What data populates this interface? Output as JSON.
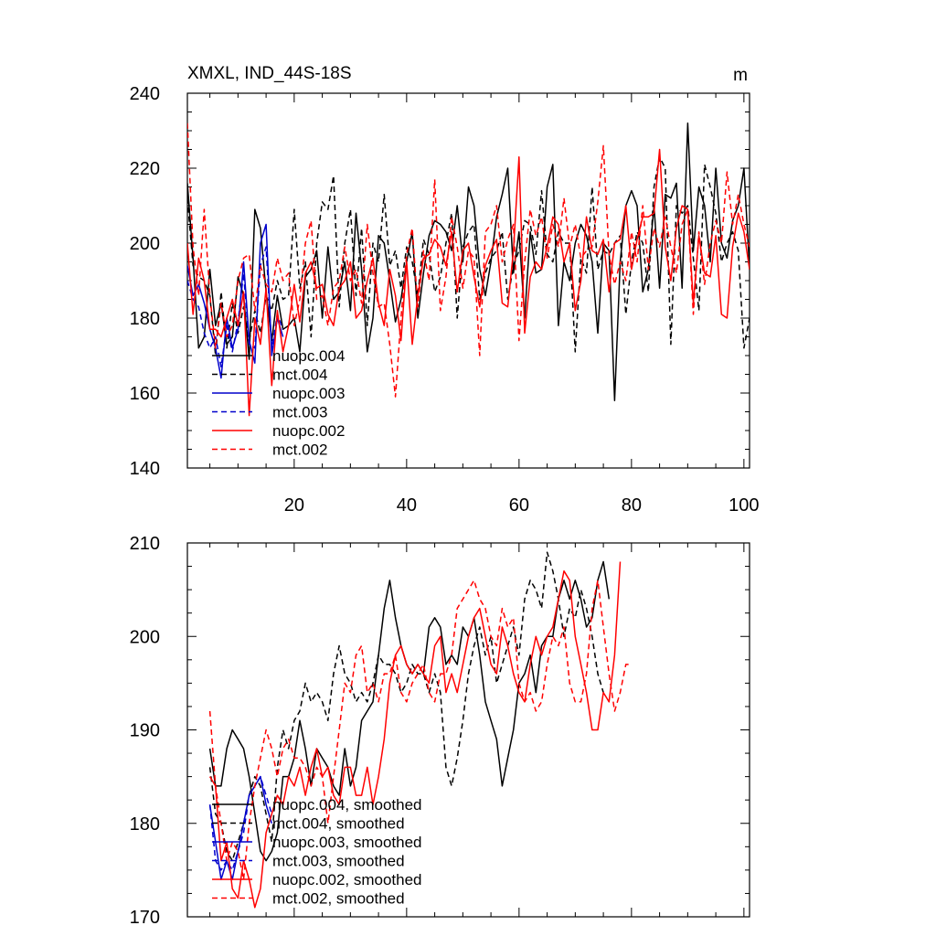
{
  "chart_data": [
    {
      "type": "line",
      "title": "XMXL, IND_44S-18S",
      "units": "m",
      "xlim": [
        1,
        101
      ],
      "ylim": [
        140,
        240
      ],
      "xticks": [
        20,
        40,
        60,
        80,
        100
      ],
      "yticks": [
        140,
        160,
        180,
        200,
        220,
        240
      ],
      "x_start": 1,
      "legend_position": "lower-left",
      "series": [
        {
          "name": "nuopc.004",
          "color": "#000000",
          "dash": "solid",
          "values": [
            216,
            196,
            172,
            175,
            193,
            178,
            184,
            173,
            175,
            191,
            186,
            169,
            209,
            204,
            187,
            174,
            186,
            177,
            178,
            180,
            171,
            191,
            193,
            198,
            180,
            199,
            185,
            187,
            195,
            182,
            208,
            193,
            171,
            180,
            202,
            200,
            190,
            179,
            185,
            195,
            203,
            180,
            192,
            202,
            206,
            205,
            203,
            198,
            210,
            195,
            215,
            210,
            193,
            186,
            195,
            207,
            213,
            220,
            192,
            203,
            180,
            203,
            192,
            193,
            215,
            221,
            178,
            195,
            190,
            200,
            205,
            202,
            195,
            176,
            200,
            198,
            158,
            195,
            210,
            214,
            210,
            187,
            193,
            210,
            188,
            213,
            212,
            216,
            188,
            232,
            198,
            215,
            210,
            195,
            220,
            200,
            196,
            206,
            210,
            220,
            193
          ]
        },
        {
          "name": "mct.004",
          "color": "#000000",
          "dash": "dash",
          "values": [
            212,
            194,
            191,
            190,
            186,
            170,
            187,
            172,
            184,
            176,
            183,
            174,
            182,
            176,
            186,
            182,
            190,
            185,
            186,
            209,
            188,
            195,
            175,
            200,
            211,
            209,
            218,
            183,
            200,
            209,
            186,
            204,
            178,
            200,
            195,
            213,
            194,
            198,
            188,
            199,
            195,
            186,
            201,
            197,
            187,
            191,
            200,
            208,
            180,
            199,
            203,
            205,
            185,
            192,
            196,
            198,
            203,
            185,
            194,
            198,
            206,
            205,
            197,
            214,
            197,
            195,
            203,
            200,
            200,
            171,
            196,
            192,
            215,
            193,
            198,
            197,
            200,
            202,
            181,
            195,
            203,
            200,
            187,
            215,
            223,
            220,
            173,
            210,
            208,
            210,
            196,
            182,
            221,
            215,
            208,
            195,
            200,
            203,
            198,
            172,
            180
          ]
        },
        {
          "name": "nuopc.003",
          "color": "#0000cc",
          "dash": "solid",
          "values": [
            194,
            186,
            189,
            184,
            177,
            172,
            164,
            180,
            172,
            177,
            195,
            174,
            168,
            200,
            205,
            170,
            180,
            175
          ]
        },
        {
          "name": "mct.003",
          "color": "#0000cc",
          "dash": "dash",
          "values": [
            190,
            185,
            183,
            176,
            172,
            175,
            167,
            178,
            171,
            179,
            192,
            173,
            172,
            194,
            199,
            172,
            181,
            177
          ]
        },
        {
          "name": "nuopc.002",
          "color": "#ff0000",
          "dash": "solid",
          "values": [
            200,
            181,
            196,
            190,
            177,
            177,
            175,
            180,
            185,
            178,
            187,
            154,
            180,
            173,
            188,
            162,
            182,
            171,
            178,
            189,
            179,
            192,
            195,
            188,
            189,
            181,
            178,
            188,
            190,
            195,
            180,
            182,
            190,
            196,
            184,
            178,
            193,
            186,
            174,
            195,
            173,
            186,
            196,
            197,
            201,
            199,
            194,
            203,
            187,
            198,
            200,
            191,
            183,
            194,
            198,
            201,
            184,
            183,
            198,
            223,
            176,
            191,
            195,
            193,
            199,
            207,
            205,
            195,
            200,
            182,
            190,
            207,
            198,
            197,
            201,
            187,
            200,
            201,
            210,
            193,
            201,
            207,
            207,
            208,
            225,
            199,
            190,
            204,
            210,
            209,
            184,
            202,
            192,
            191,
            202,
            181,
            180,
            199,
            208,
            203,
            193
          ]
        },
        {
          "name": "mct.002",
          "color": "#ff0000",
          "dash": "dash",
          "values": [
            232,
            199,
            186,
            209,
            186,
            172,
            184,
            175,
            178,
            190,
            196,
            197,
            182,
            194,
            189,
            187,
            196,
            190,
            192,
            178,
            185,
            200,
            206,
            185,
            186,
            178,
            188,
            190,
            199,
            190,
            193,
            184,
            205,
            192,
            183,
            184,
            173,
            159,
            180,
            197,
            204,
            183,
            198,
            190,
            217,
            182,
            191,
            207,
            199,
            188,
            198,
            196,
            170,
            203,
            205,
            210,
            195,
            201,
            205,
            174,
            195,
            209,
            202,
            207,
            196,
            205,
            199,
            212,
            199,
            205,
            196,
            198,
            199,
            211,
            226,
            197,
            189,
            195,
            190,
            203,
            195,
            210,
            193,
            204,
            199,
            207,
            199,
            192,
            205,
            209,
            181,
            203,
            189,
            200,
            206,
            200,
            219,
            205,
            213,
            205,
            199
          ]
        }
      ]
    },
    {
      "type": "line",
      "title": "",
      "units": "",
      "xlim": [
        1,
        101
      ],
      "ylim": [
        170,
        210
      ],
      "xticks": [
        20,
        40,
        60,
        80,
        100
      ],
      "yticks": [
        170,
        180,
        190,
        200,
        210
      ],
      "x_start": 5,
      "legend_position": "lower-left",
      "series": [
        {
          "name": "nuopc.004, smoothed",
          "color": "#000000",
          "dash": "solid",
          "values": [
            188,
            184,
            184,
            188,
            190,
            189,
            188,
            185,
            181,
            177,
            176,
            177,
            179,
            185,
            185,
            187,
            191,
            188,
            184,
            188,
            187,
            186,
            184,
            183,
            188,
            184,
            186,
            191,
            192,
            193,
            198,
            203,
            206,
            202,
            199,
            197,
            196,
            197,
            196,
            201,
            202,
            201,
            197,
            198,
            197,
            201,
            200,
            202,
            198,
            193,
            191,
            189,
            184,
            187,
            190,
            195,
            196,
            198,
            194,
            199,
            200,
            200,
            204,
            206,
            204,
            206,
            204,
            201,
            202,
            206,
            208,
            204
          ]
        },
        {
          "name": "mct.004, smoothed",
          "color": "#000000",
          "dash": "dash",
          "values": [
            186,
            181,
            180,
            177,
            176,
            178,
            180,
            183,
            185,
            184,
            181,
            178,
            186,
            190,
            188,
            191,
            192,
            195,
            193,
            194,
            193,
            191,
            196,
            199,
            196,
            195,
            193,
            194,
            193,
            195,
            198,
            197,
            197,
            196,
            194,
            195,
            197,
            196,
            196,
            194,
            196,
            194,
            186,
            184,
            187,
            191,
            196,
            199,
            201,
            198,
            200,
            195,
            197,
            199,
            201,
            198,
            204,
            206,
            205,
            203,
            209,
            207,
            204,
            200,
            203,
            202,
            205,
            203,
            200,
            196,
            194
          ]
        },
        {
          "name": "nuopc.003, smoothed",
          "color": "#0000cc",
          "dash": "solid",
          "values": [
            182,
            178,
            174,
            176,
            174,
            177,
            180,
            183,
            184,
            185,
            182,
            180
          ]
        },
        {
          "name": "mct.003, smoothed",
          "color": "#0000cc",
          "dash": "dash",
          "values": [
            182,
            176,
            175,
            176,
            175,
            177,
            179,
            183,
            184,
            185,
            183,
            181
          ]
        },
        {
          "name": "nuopc.002, smoothed",
          "color": "#ff0000",
          "dash": "solid",
          "values": [
            185,
            184,
            176,
            178,
            173,
            172,
            176,
            174,
            171,
            173,
            179,
            181,
            183,
            182,
            185,
            184,
            186,
            183,
            186,
            188,
            185,
            186,
            183,
            182,
            186,
            186,
            183,
            183,
            186,
            182,
            185,
            189,
            195,
            198,
            199,
            197,
            196,
            197,
            196,
            195,
            199,
            200,
            194,
            196,
            194,
            197,
            200,
            202,
            203,
            200,
            197,
            196,
            201,
            199,
            196,
            194,
            193,
            197,
            200,
            198,
            200,
            201,
            204,
            207,
            206,
            200,
            197,
            194,
            190,
            190,
            194,
            193,
            198,
            208
          ]
        },
        {
          "name": "mct.002, smoothed",
          "color": "#ff0000",
          "dash": "dash",
          "values": [
            192,
            184,
            180,
            176,
            178,
            177,
            174,
            180,
            184,
            187,
            190,
            188,
            185,
            188,
            189,
            187,
            187,
            186,
            184,
            186,
            185,
            180,
            185,
            190,
            195,
            194,
            198,
            199,
            194,
            195,
            193,
            196,
            196,
            198,
            194,
            193,
            195,
            196,
            197,
            194,
            193,
            196,
            196,
            198,
            203,
            204,
            205,
            206,
            204,
            203,
            200,
            199,
            203,
            201,
            202,
            195,
            193,
            194,
            192,
            193,
            197,
            200,
            199,
            201,
            195,
            193,
            193,
            196,
            203,
            206,
            201,
            196,
            192,
            194,
            197,
            197
          ]
        }
      ]
    }
  ]
}
